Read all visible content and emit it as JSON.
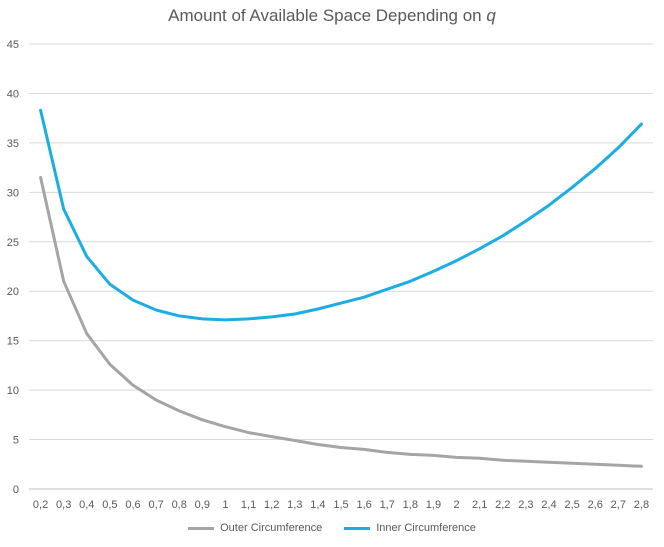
{
  "chart_data": {
    "type": "line",
    "title_main": "Amount of Available Space Depending on ",
    "title_var": "q",
    "xlabel": "",
    "ylabel": "",
    "ylim": [
      0,
      45
    ],
    "yticks": [
      0,
      5,
      10,
      15,
      20,
      25,
      30,
      35,
      40,
      45
    ],
    "grid": true,
    "legend_position": "bottom",
    "categories": [
      "0,2",
      "0,3",
      "0,4",
      "0,5",
      "0,6",
      "0,7",
      "0,8",
      "0,9",
      "1",
      "1,1",
      "1,2",
      "1,3",
      "1,4",
      "1,5",
      "1,6",
      "1,7",
      "1,8",
      "1,9",
      "2",
      "2,1",
      "2,2",
      "2,3",
      "2,4",
      "2,5",
      "2,6",
      "2,7",
      "2,8"
    ],
    "series": [
      {
        "name": "Outer Circumference",
        "color": "#A5A5A5",
        "values": [
          31.5,
          21.0,
          15.7,
          12.6,
          10.5,
          9.0,
          7.9,
          7.0,
          6.3,
          5.7,
          5.3,
          4.9,
          4.5,
          4.2,
          4.0,
          3.7,
          3.5,
          3.4,
          3.2,
          3.1,
          2.9,
          2.8,
          2.7,
          2.6,
          2.5,
          2.4,
          2.3
        ]
      },
      {
        "name": "Inner Circumference",
        "color": "#1CADE4",
        "values": [
          38.3,
          28.3,
          23.5,
          20.7,
          19.1,
          18.1,
          17.5,
          17.2,
          17.1,
          17.2,
          17.4,
          17.7,
          18.2,
          18.8,
          19.4,
          20.2,
          21.0,
          22.0,
          23.1,
          24.3,
          25.6,
          27.1,
          28.7,
          30.5,
          32.4,
          34.5,
          36.9
        ]
      }
    ]
  }
}
